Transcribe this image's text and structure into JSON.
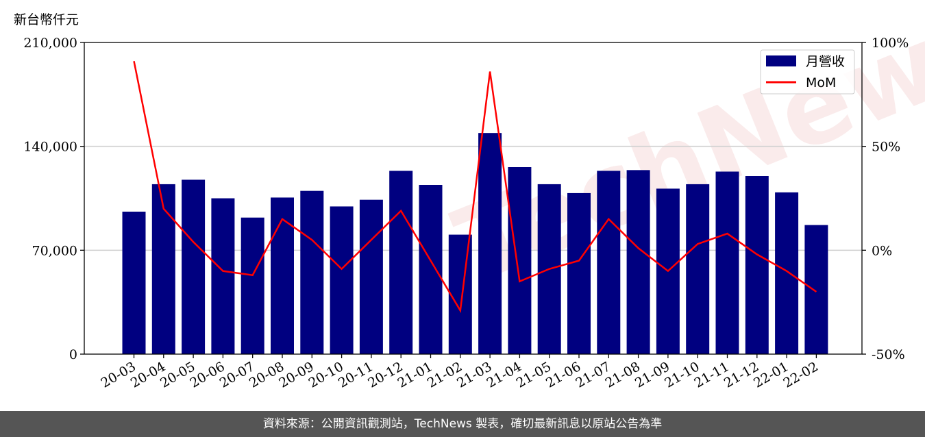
{
  "ylabel_left": "新台幣仟元",
  "footer_text": "資料來源：公開資訊觀測站，TechNews 製表，確切最新訊息以原站公告為準",
  "watermark_text": "TechNews",
  "chart_data": {
    "type": "bar",
    "categories": [
      "20-03",
      "20-04",
      "20-05",
      "20-06",
      "20-07",
      "20-08",
      "20-09",
      "20-10",
      "20-11",
      "20-12",
      "21-01",
      "21-02",
      "21-03",
      "21-04",
      "21-05",
      "21-06",
      "21-07",
      "21-08",
      "21-09",
      "21-10",
      "21-11",
      "21-12",
      "22-01",
      "22-02"
    ],
    "series": [
      {
        "name": "月營收",
        "axis": "left",
        "kind": "bar",
        "color": "#000080",
        "values": [
          96000,
          114500,
          117500,
          105000,
          92000,
          105500,
          110000,
          99500,
          104000,
          123500,
          114000,
          80500,
          149000,
          126000,
          114500,
          108500,
          123500,
          124000,
          111500,
          114500,
          123000,
          120000,
          109000,
          87000
        ]
      },
      {
        "name": "MoM",
        "axis": "right",
        "kind": "line",
        "color": "#ff0000",
        "values": [
          91,
          20,
          4,
          -10,
          -12,
          15,
          5,
          -9,
          5,
          19,
          -5,
          -29,
          86,
          -15,
          -9,
          -5,
          15,
          1,
          -10,
          3,
          8,
          -2,
          -10,
          -20
        ]
      }
    ],
    "left_axis": {
      "ylim": [
        0,
        210000
      ],
      "ticks": [
        0,
        70000,
        140000,
        210000
      ],
      "tick_labels": [
        "0",
        "70,000",
        "140,000",
        "210,000"
      ]
    },
    "right_axis": {
      "ylim": [
        -50,
        100
      ],
      "ticks": [
        -50,
        0,
        50,
        100
      ],
      "tick_labels": [
        "-50%",
        "0%",
        "50%",
        "100%"
      ]
    },
    "grid": "horizontal",
    "legend": "top-right"
  }
}
